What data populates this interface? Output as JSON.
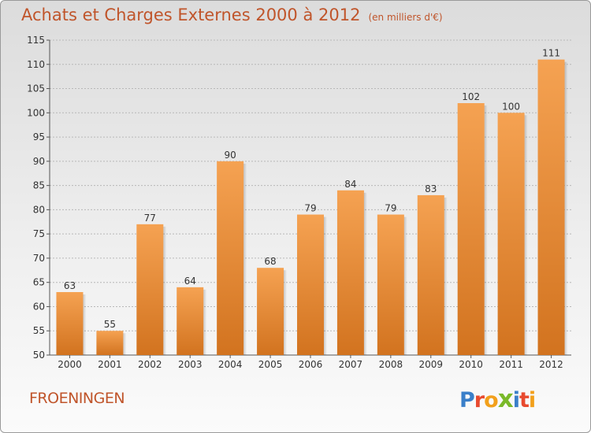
{
  "header": {
    "title": "Achats et Charges Externes 2000 à 2012",
    "subtitle": "(en milliers d'€)"
  },
  "footer": {
    "city": "FROENINGEN",
    "logo": "Proxiti"
  },
  "colors": {
    "title": "#c0552b",
    "bar_top": "#f5a252",
    "bar_bottom": "#d2731f",
    "logo_letters": [
      "#3a7fc9",
      "#e84a2f",
      "#f2a01b",
      "#7ab929",
      "#3a7fc9",
      "#e84a2f",
      "#f2a01b"
    ]
  },
  "chart_data": {
    "type": "bar",
    "title": "Achats et Charges Externes 2000 à 2012",
    "subtitle": "(en milliers d'€)",
    "categories": [
      "2000",
      "2001",
      "2002",
      "2003",
      "2004",
      "2005",
      "2006",
      "2007",
      "2008",
      "2009",
      "2010",
      "2011",
      "2012"
    ],
    "values": [
      63,
      55,
      77,
      64,
      90,
      68,
      79,
      84,
      79,
      83,
      102,
      100,
      111
    ],
    "ylim": [
      50,
      115
    ],
    "yticks": [
      50,
      55,
      60,
      65,
      70,
      75,
      80,
      85,
      90,
      95,
      100,
      105,
      110,
      115
    ],
    "grid": "horizontal dashed",
    "legend": "none",
    "data_labels": true
  }
}
